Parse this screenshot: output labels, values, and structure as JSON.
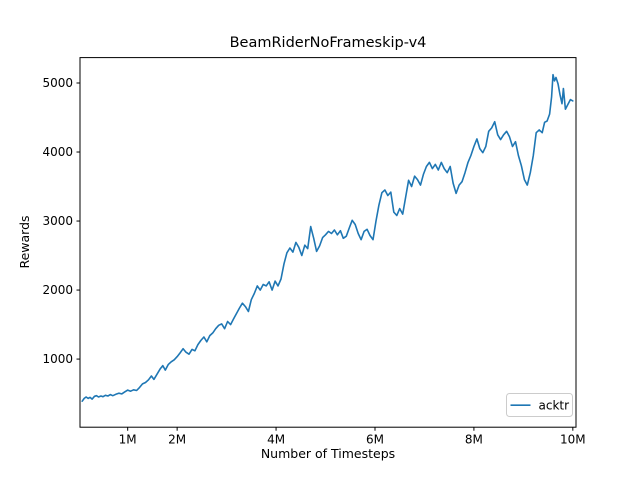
{
  "figure": {
    "title": "BeamRiderNoFrameskip-v4",
    "xlabel": "Number of Timesteps",
    "ylabel": "Rewards",
    "legend": {
      "label": "acktr"
    },
    "colors": {
      "line": "#1f77b4",
      "legend_border": "#cccccc",
      "spine": "#000000"
    }
  },
  "chart_data": {
    "type": "line",
    "title": "BeamRiderNoFrameskip-v4",
    "xlabel": "Number of Timesteps",
    "ylabel": "Rewards",
    "grid": false,
    "legend_position": "lower right",
    "x_unit": "millions of timesteps",
    "xlim": [
      0.036,
      10.064
    ],
    "ylim": [
      13,
      5368
    ],
    "xticks": {
      "values": [
        1,
        2,
        4,
        6,
        8,
        10
      ],
      "labels": [
        "1M",
        "2M",
        "4M",
        "6M",
        "8M",
        "10M"
      ]
    },
    "yticks": {
      "values": [
        1000,
        2000,
        3000,
        4000,
        5000
      ],
      "labels": [
        "1000",
        "2000",
        "3000",
        "4000",
        "5000"
      ]
    },
    "series": [
      {
        "name": "acktr",
        "color": "#1f77b4",
        "x": [
          0.08,
          0.12,
          0.16,
          0.2,
          0.24,
          0.28,
          0.33,
          0.37,
          0.41,
          0.46,
          0.5,
          0.55,
          0.6,
          0.65,
          0.7,
          0.76,
          0.82,
          0.88,
          0.94,
          1.0,
          1.06,
          1.12,
          1.18,
          1.24,
          1.3,
          1.36,
          1.42,
          1.48,
          1.53,
          1.6,
          1.66,
          1.71,
          1.76,
          1.82,
          1.88,
          1.94,
          2.0,
          2.06,
          2.12,
          2.18,
          2.24,
          2.3,
          2.36,
          2.42,
          2.48,
          2.54,
          2.6,
          2.66,
          2.72,
          2.78,
          2.84,
          2.9,
          2.96,
          3.02,
          3.08,
          3.14,
          3.2,
          3.26,
          3.32,
          3.38,
          3.44,
          3.5,
          3.56,
          3.62,
          3.68,
          3.74,
          3.8,
          3.86,
          3.92,
          3.98,
          4.04,
          4.1,
          4.16,
          4.22,
          4.28,
          4.34,
          4.4,
          4.46,
          4.52,
          4.58,
          4.64,
          4.7,
          4.76,
          4.82,
          4.88,
          4.94,
          5.0,
          5.06,
          5.12,
          5.18,
          5.24,
          5.3,
          5.36,
          5.42,
          5.48,
          5.54,
          5.6,
          5.66,
          5.72,
          5.78,
          5.84,
          5.9,
          5.96,
          6.02,
          6.08,
          6.14,
          6.2,
          6.26,
          6.32,
          6.38,
          6.44,
          6.5,
          6.56,
          6.62,
          6.68,
          6.74,
          6.8,
          6.86,
          6.92,
          6.98,
          7.04,
          7.1,
          7.16,
          7.22,
          7.28,
          7.34,
          7.4,
          7.46,
          7.52,
          7.58,
          7.64,
          7.7,
          7.76,
          7.82,
          7.88,
          7.94,
          8.0,
          8.06,
          8.12,
          8.18,
          8.24,
          8.3,
          8.36,
          8.42,
          8.48,
          8.54,
          8.6,
          8.66,
          8.72,
          8.78,
          8.84,
          8.9,
          8.96,
          9.02,
          9.08,
          9.14,
          9.2,
          9.26,
          9.32,
          9.38,
          9.43,
          9.48,
          9.53,
          9.57,
          9.6,
          9.63,
          9.66,
          9.7,
          9.74,
          9.78,
          9.81,
          9.85,
          9.9,
          9.95,
          10.0
        ],
        "y": [
          390,
          430,
          450,
          430,
          445,
          420,
          460,
          470,
          450,
          465,
          455,
          475,
          465,
          485,
          470,
          490,
          505,
          495,
          525,
          550,
          535,
          555,
          545,
          590,
          640,
          660,
          700,
          755,
          705,
          790,
          860,
          905,
          840,
          920,
          960,
          990,
          1035,
          1090,
          1150,
          1100,
          1070,
          1140,
          1120,
          1210,
          1270,
          1320,
          1250,
          1340,
          1380,
          1440,
          1490,
          1510,
          1440,
          1545,
          1500,
          1580,
          1660,
          1740,
          1810,
          1760,
          1690,
          1860,
          1950,
          2060,
          2000,
          2080,
          2060,
          2120,
          2000,
          2130,
          2060,
          2160,
          2380,
          2540,
          2610,
          2550,
          2690,
          2620,
          2500,
          2650,
          2600,
          2920,
          2750,
          2560,
          2640,
          2760,
          2800,
          2850,
          2820,
          2870,
          2800,
          2860,
          2750,
          2780,
          2900,
          3010,
          2950,
          2820,
          2730,
          2850,
          2880,
          2790,
          2730,
          3000,
          3230,
          3410,
          3450,
          3370,
          3420,
          3130,
          3080,
          3180,
          3100,
          3350,
          3590,
          3500,
          3650,
          3600,
          3520,
          3680,
          3790,
          3850,
          3760,
          3820,
          3740,
          3850,
          3760,
          3700,
          3790,
          3550,
          3400,
          3520,
          3570,
          3700,
          3850,
          3950,
          4080,
          4190,
          4050,
          3990,
          4080,
          4300,
          4350,
          4440,
          4250,
          4180,
          4250,
          4300,
          4220,
          4080,
          4150,
          3950,
          3800,
          3600,
          3520,
          3700,
          3950,
          4280,
          4320,
          4280,
          4430,
          4450,
          4550,
          4800,
          5120,
          5030,
          5080,
          4990,
          4830,
          4700,
          4920,
          4620,
          4690,
          4760,
          4740
        ]
      }
    ]
  }
}
